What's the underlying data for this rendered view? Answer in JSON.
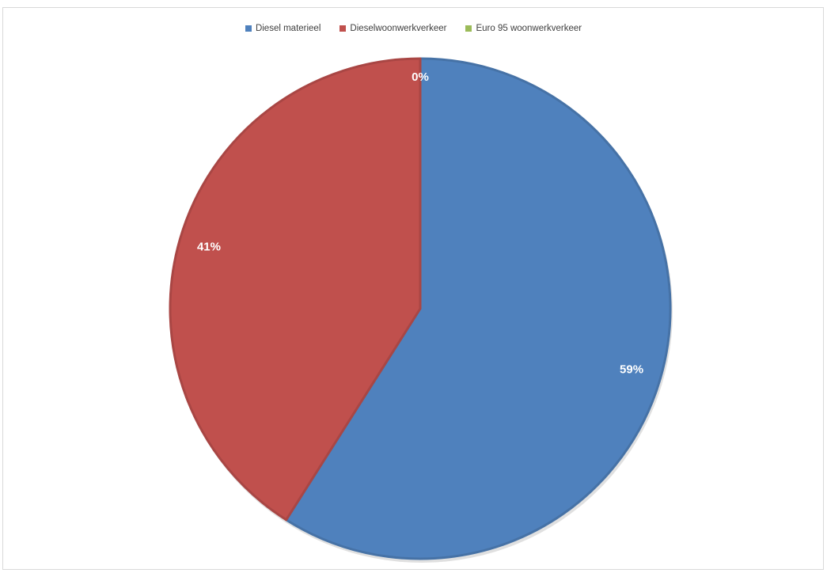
{
  "chart_data": {
    "type": "pie",
    "title": "",
    "categories": [
      "Diesel materieel",
      "Dieselwoonwerkverkeer",
      "Euro 95 woonwerkverkeer"
    ],
    "values": [
      59,
      41,
      0
    ],
    "value_labels": [
      "59%",
      "41%",
      "0%"
    ],
    "colors": [
      "#4f81bd",
      "#c0504d",
      "#9bbb59"
    ],
    "legend_position": "top",
    "start_angle": "top, clockwise"
  }
}
